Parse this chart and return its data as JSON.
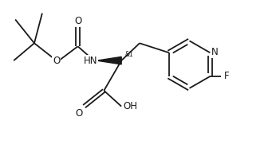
{
  "background_color": "#ffffff",
  "line_color": "#1a1a1a",
  "line_width": 1.3,
  "font_size": 8.5,
  "figsize": [
    3.46,
    1.86
  ],
  "dpi": 100,
  "xlim": [
    0,
    3.46
  ],
  "ylim": [
    0,
    1.86
  ]
}
